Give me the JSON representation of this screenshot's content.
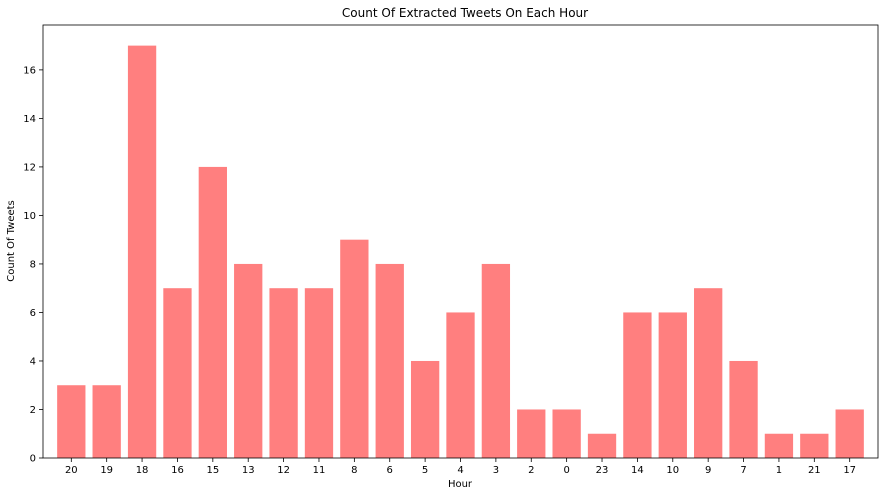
{
  "chart_data": {
    "type": "bar",
    "title": "Count Of Extracted Tweets On Each Hour",
    "xlabel": "Hour",
    "ylabel": "Count Of Tweets",
    "categories": [
      "20",
      "19",
      "18",
      "16",
      "15",
      "13",
      "12",
      "11",
      "8",
      "6",
      "5",
      "4",
      "3",
      "2",
      "0",
      "23",
      "14",
      "10",
      "9",
      "7",
      "1",
      "21",
      "17"
    ],
    "values": [
      3,
      3,
      17,
      7,
      12,
      8,
      7,
      7,
      9,
      8,
      4,
      6,
      8,
      2,
      2,
      1,
      6,
      6,
      7,
      4,
      1,
      1,
      2
    ],
    "ylim": [
      0,
      17.85
    ],
    "yticks": [
      0,
      2,
      4,
      6,
      8,
      10,
      12,
      14,
      16
    ],
    "grid": false,
    "bar_color": "#ff7f7f"
  }
}
